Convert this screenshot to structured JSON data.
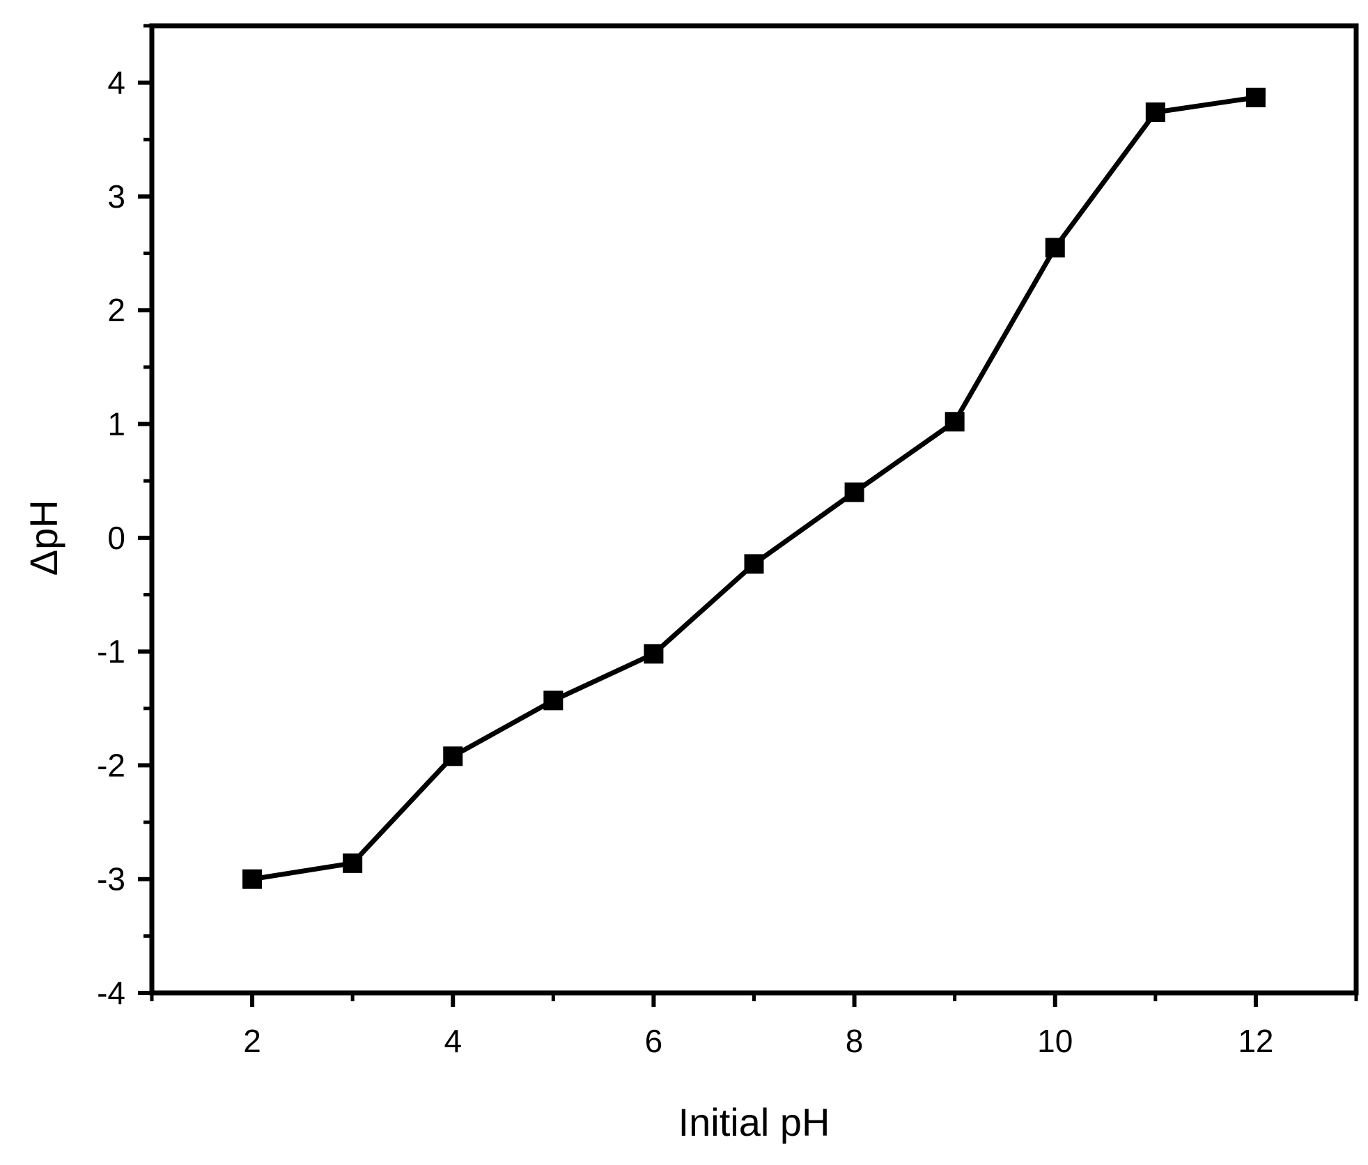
{
  "chart_data": {
    "type": "line",
    "title": "",
    "xlabel": "Initial pH",
    "ylabel": "ΔpH",
    "xlim": [
      1,
      13
    ],
    "ylim": [
      -4,
      4.5
    ],
    "xticks": [
      2,
      4,
      6,
      8,
      10,
      12
    ],
    "xtick_labels": [
      "2",
      "4",
      "6",
      "8",
      "10",
      "12"
    ],
    "yticks": [
      -4,
      -3,
      -2,
      -1,
      0,
      1,
      2,
      3,
      4
    ],
    "ytick_labels": [
      "-4",
      "-3",
      "-2",
      "-1",
      "0",
      "1",
      "2",
      "3",
      "4"
    ],
    "grid": false,
    "legend": "none",
    "series": [
      {
        "marker": "square",
        "color": "#000000",
        "x": [
          2,
          3,
          4,
          5,
          6,
          7,
          8,
          9,
          10,
          11,
          12
        ],
        "y": [
          -3.0,
          -2.86,
          -1.92,
          -1.43,
          -1.02,
          -0.23,
          0.4,
          1.02,
          2.55,
          3.74,
          3.87
        ]
      }
    ]
  }
}
